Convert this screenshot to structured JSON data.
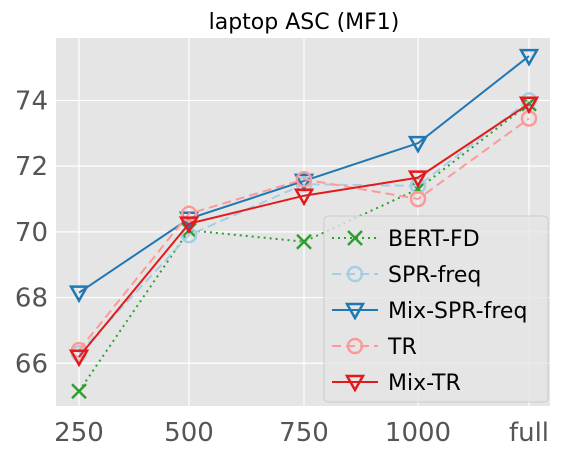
{
  "chart_data": {
    "type": "line",
    "title": "laptop ASC (MF1)",
    "xlabel": "",
    "ylabel": "",
    "categories": [
      "250",
      "500",
      "750",
      "1000",
      "full"
    ],
    "ylim": [
      64.7,
      75.9
    ],
    "yticks": [
      66,
      68,
      70,
      72,
      74
    ],
    "grid": true,
    "legend_position": "lower-right",
    "series": [
      {
        "name": "BERT-FD",
        "values": [
          65.15,
          70.05,
          69.7,
          71.3,
          73.9
        ],
        "color": "#2ca02c",
        "dash": "dotted",
        "marker": "x"
      },
      {
        "name": "SPR-freq",
        "values": [
          66.3,
          69.9,
          71.45,
          71.4,
          74.0
        ],
        "color": "#a6cee3",
        "dash": "dashed",
        "marker": "circle"
      },
      {
        "name": "Mix-SPR-freq",
        "values": [
          68.15,
          70.4,
          71.55,
          72.7,
          75.35
        ],
        "color": "#1f77b4",
        "dash": "solid",
        "marker": "triangle-down"
      },
      {
        "name": "TR",
        "values": [
          66.4,
          70.55,
          71.6,
          71.0,
          73.45
        ],
        "color": "#fb9a99",
        "dash": "dashed",
        "marker": "circle"
      },
      {
        "name": "Mix-TR",
        "values": [
          66.2,
          70.25,
          71.1,
          71.65,
          73.9
        ],
        "color": "#e31a1c",
        "dash": "solid",
        "marker": "triangle-down"
      }
    ]
  }
}
